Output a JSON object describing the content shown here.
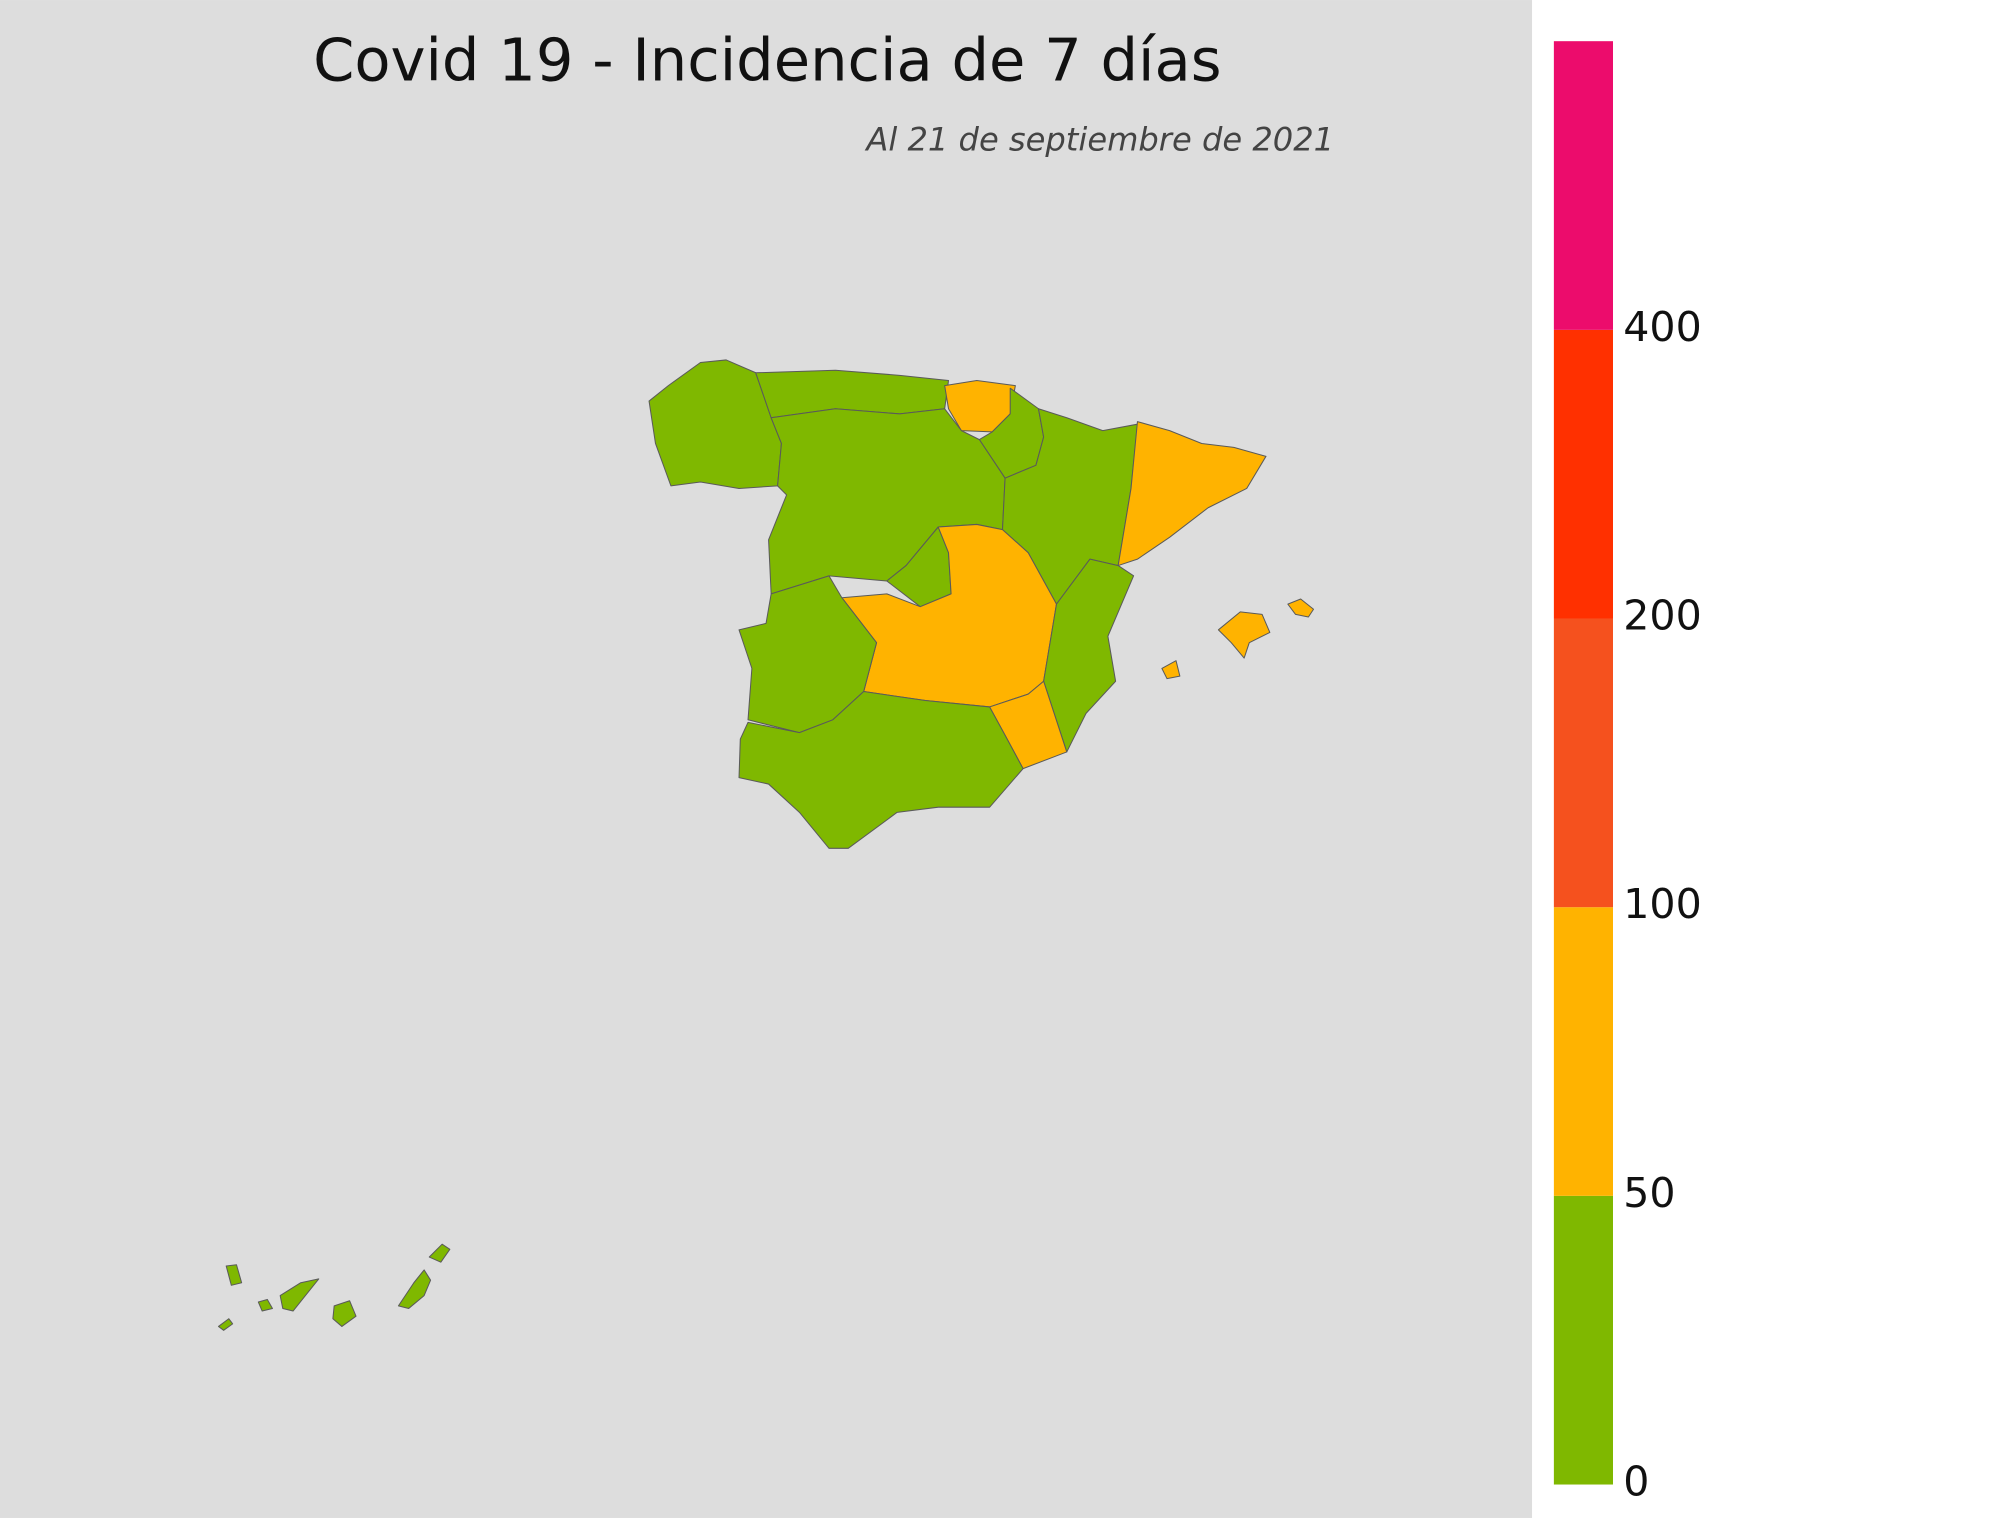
{
  "chart_data": {
    "type": "choropleth",
    "title": "Covid 19 - Incidencia de 7 días",
    "subtitle": "Al 21 de septiembre de 2021",
    "colorbar": {
      "ticks": [
        0,
        50,
        100,
        200,
        400
      ],
      "colors": [
        "#7fb800",
        "#ffb300",
        "#f5511e",
        "#ff3000",
        "#ec0c6c"
      ]
    }
  }
}
